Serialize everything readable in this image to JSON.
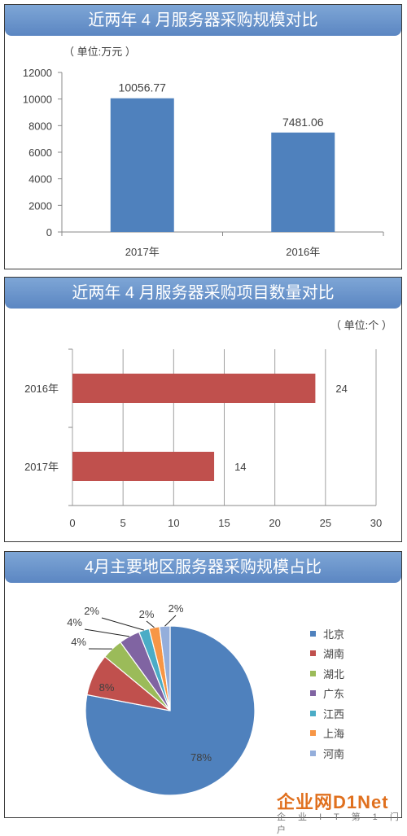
{
  "panels": {
    "p1": {
      "title": "近两年 4 月服务器采购规模对比",
      "unit": "（ 单位:万元 ）"
    },
    "p2": {
      "title": "近两年 4 月服务器采购项目数量对比",
      "unit": "（ 单位:个 ）"
    },
    "p3": {
      "title": "4月主要地区服务器采购规模占比"
    }
  },
  "colors": {
    "header": "#5b86c2",
    "blue": "#4f81bd",
    "red": "#c0504d"
  },
  "watermark": {
    "main": "企业网D1Net",
    "sub": "企 业 I T 第 1 门 户"
  },
  "chart_data": [
    {
      "type": "bar",
      "title": "近两年 4 月服务器采购规模对比",
      "categories": [
        "2017年",
        "2016年"
      ],
      "values": [
        10056.77,
        7481.06
      ],
      "value_labels": [
        "10056.77",
        "7481.06"
      ],
      "ylim": [
        0,
        12000
      ],
      "yticks": [
        0,
        2000,
        4000,
        6000,
        8000,
        10000,
        12000
      ],
      "grid": false,
      "color": "#4f81bd"
    },
    {
      "type": "bar",
      "orientation": "horizontal",
      "title": "近两年 4 月服务器采购项目数量对比",
      "categories": [
        "2016年",
        "2017年"
      ],
      "values": [
        24,
        14
      ],
      "xlim": [
        0,
        30
      ],
      "xticks": [
        0,
        5,
        10,
        15,
        20,
        25,
        30
      ],
      "grid": true,
      "color": "#c0504d"
    },
    {
      "type": "pie",
      "title": "4月主要地区服务器采购规模占比",
      "labels": [
        "北京",
        "湖南",
        "湖北",
        "广东",
        "江西",
        "上海",
        "河南"
      ],
      "values": [
        78,
        8,
        4,
        4,
        2,
        2,
        2
      ],
      "value_labels": [
        "78%",
        "8%",
        "4%",
        "4%",
        "2%",
        "2%",
        "2%"
      ],
      "colors": [
        "#4f81bd",
        "#c0504d",
        "#9bbb59",
        "#8064a2",
        "#4bacc6",
        "#f79646",
        "#94aedb"
      ],
      "legend": "right"
    }
  ]
}
